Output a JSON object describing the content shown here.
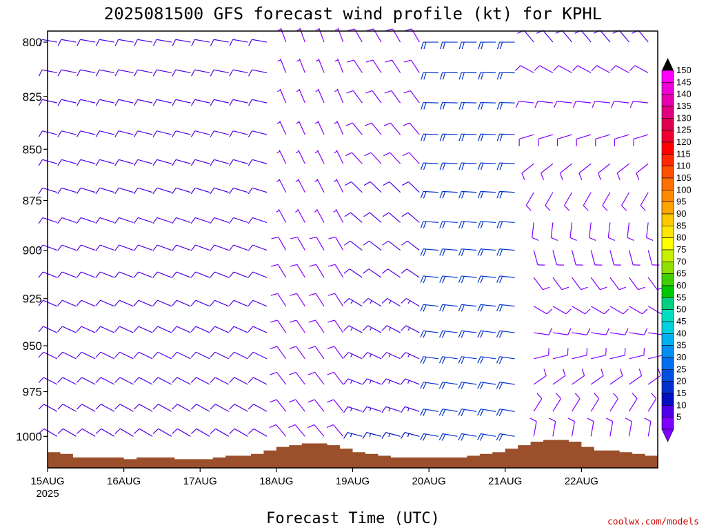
{
  "chart_data": {
    "type": "wind-barb-profile",
    "title": "2025081500 GFS forecast wind profile (kt) for KPHL",
    "xlabel": "Forecast Time (UTC)",
    "ylabel": "",
    "credit": "coolwx.com/models",
    "x_ticks": [
      {
        "label": "15AUG",
        "sub": "2025",
        "hour": 0
      },
      {
        "label": "16AUG",
        "sub": "",
        "hour": 24
      },
      {
        "label": "17AUG",
        "sub": "",
        "hour": 48
      },
      {
        "label": "18AUG",
        "sub": "",
        "hour": 72
      },
      {
        "label": "19AUG",
        "sub": "",
        "hour": 96
      },
      {
        "label": "20AUG",
        "sub": "",
        "hour": 120
      },
      {
        "label": "21AUG",
        "sub": "",
        "hour": 144
      },
      {
        "label": "22AUG",
        "sub": "",
        "hour": 168
      }
    ],
    "x_range_hours": [
      0,
      192
    ],
    "time_step_hours": 6,
    "y_ticks": [
      "800",
      "825",
      "850",
      "875",
      "900",
      "925",
      "950",
      "975",
      "1000"
    ],
    "y_range_hpa": [
      795,
      1018
    ],
    "levels_hpa": [
      800,
      814,
      828,
      843,
      857,
      871,
      886,
      900,
      914,
      929,
      943,
      957,
      971,
      986,
      1000
    ],
    "colorbar": {
      "labels": [
        "150",
        "145",
        "140",
        "135",
        "130",
        "125",
        "120",
        "115",
        "110",
        "105",
        "100",
        "95",
        "90",
        "85",
        "80",
        "75",
        "70",
        "65",
        "60",
        "55",
        "50",
        "45",
        "40",
        "35",
        "30",
        "25",
        "20",
        "15",
        "10",
        "5"
      ],
      "colors": [
        "#ff00ff",
        "#f000d8",
        "#e800b0",
        "#e0007f",
        "#e00050",
        "#f00030",
        "#ff0000",
        "#ff2800",
        "#ff5000",
        "#ff7000",
        "#ff8c00",
        "#ffa500",
        "#ffc800",
        "#ffe600",
        "#ffff00",
        "#c8f000",
        "#90e000",
        "#40d000",
        "#00c800",
        "#00d080",
        "#00e0c0",
        "#00d0e0",
        "#00b0f0",
        "#0090f0",
        "#0070f0",
        "#0050e0",
        "#0030d0",
        "#0010c0",
        "#5000e8",
        "#8000ff"
      ]
    },
    "terrain_color": "#9b4f2a",
    "terrain_hpa": [
      1009,
      1010,
      1012,
      1012,
      1012,
      1012,
      1013,
      1012,
      1012,
      1012,
      1013,
      1013,
      1013,
      1012,
      1011,
      1011,
      1010,
      1008,
      1006,
      1005,
      1004,
      1004,
      1005,
      1007,
      1009,
      1010,
      1011,
      1012,
      1012,
      1012,
      1012,
      1012,
      1012,
      1011,
      1010,
      1009,
      1007,
      1005,
      1003,
      1002,
      1002,
      1003,
      1006,
      1008,
      1008,
      1009,
      1010,
      1011
    ],
    "wind_regimes": [
      {
        "hours": [
          0,
          66
        ],
        "upper_dir": 280,
        "upper_spd": 12,
        "lower_dir": 300,
        "lower_spd": 10
      },
      {
        "hours": [
          72,
          90
        ],
        "upper_dir": 340,
        "upper_spd": 7,
        "lower_dir": 320,
        "lower_spd": 8
      },
      {
        "hours": [
          96,
          114
        ],
        "upper_dir": 330,
        "upper_spd": 8,
        "lower_dir": 285,
        "lower_spd": 15
      },
      {
        "hours": [
          120,
          144
        ],
        "upper_dir": 270,
        "upper_spd": 22,
        "lower_dir": 280,
        "lower_spd": 22
      },
      {
        "hours": [
          150,
          192
        ],
        "upper_dir": 320,
        "upper_spd": 10,
        "lower_dir": 10,
        "lower_spd": 8
      }
    ]
  }
}
